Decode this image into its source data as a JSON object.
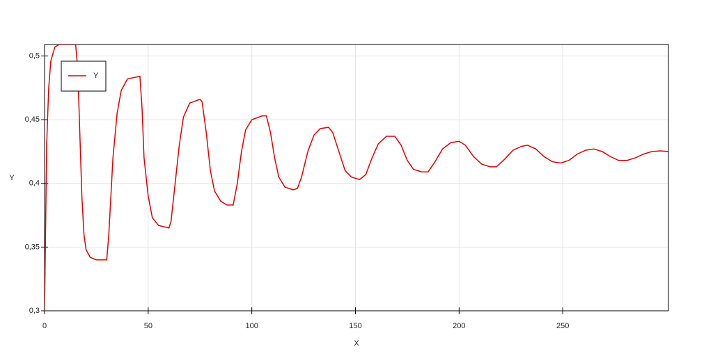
{
  "chart_data": {
    "type": "line",
    "x_label": "X",
    "y_label": "Y",
    "x": [
      0,
      1,
      2,
      3,
      5,
      7,
      15,
      16,
      17,
      18,
      19,
      20,
      22,
      25,
      30,
      31,
      33,
      35,
      37,
      40,
      46,
      47,
      48,
      50,
      52,
      55,
      60,
      61,
      63,
      65,
      67,
      70,
      75,
      76,
      78,
      80,
      82,
      85,
      88,
      91,
      93,
      95,
      97,
      100,
      105,
      107,
      109,
      111,
      113,
      116,
      120,
      122,
      124,
      127,
      130,
      133,
      137,
      139,
      142,
      145,
      148,
      152,
      155,
      158,
      161,
      165,
      169,
      172,
      175,
      178,
      182,
      185,
      188,
      192,
      196,
      200,
      203,
      207,
      211,
      215,
      218,
      222,
      226,
      230,
      233,
      237,
      241,
      245,
      249,
      253,
      257,
      261,
      265,
      269,
      273,
      277,
      281,
      285,
      289,
      293,
      297,
      301
    ],
    "series": [
      {
        "name": "Y",
        "color": "#e00000",
        "values": [
          0.3,
          0.43,
          0.475,
          0.496,
          0.507,
          0.509,
          0.509,
          0.49,
          0.44,
          0.39,
          0.36,
          0.348,
          0.342,
          0.34,
          0.34,
          0.36,
          0.42,
          0.455,
          0.473,
          0.482,
          0.484,
          0.46,
          0.42,
          0.39,
          0.373,
          0.367,
          0.365,
          0.37,
          0.4,
          0.43,
          0.452,
          0.463,
          0.466,
          0.464,
          0.44,
          0.41,
          0.394,
          0.386,
          0.383,
          0.383,
          0.4,
          0.425,
          0.442,
          0.45,
          0.453,
          0.453,
          0.44,
          0.42,
          0.405,
          0.397,
          0.395,
          0.396,
          0.405,
          0.425,
          0.438,
          0.443,
          0.444,
          0.44,
          0.425,
          0.41,
          0.405,
          0.403,
          0.407,
          0.42,
          0.431,
          0.437,
          0.437,
          0.43,
          0.418,
          0.411,
          0.409,
          0.409,
          0.416,
          0.427,
          0.432,
          0.433,
          0.43,
          0.421,
          0.415,
          0.413,
          0.413,
          0.419,
          0.426,
          0.429,
          0.43,
          0.427,
          0.421,
          0.417,
          0.416,
          0.418,
          0.423,
          0.426,
          0.427,
          0.425,
          0.421,
          0.418,
          0.418,
          0.42,
          0.423,
          0.425,
          0.4255,
          0.425
        ]
      }
    ],
    "xlim": [
      0,
      301
    ],
    "ylim": [
      0.3,
      0.509
    ],
    "xticks": [
      0,
      50,
      100,
      150,
      200,
      250
    ],
    "yticks": [
      {
        "value": 0.3,
        "label": "0,3"
      },
      {
        "value": 0.35,
        "label": "0,35"
      },
      {
        "value": 0.4,
        "label": "0,4"
      },
      {
        "value": 0.45,
        "label": "0,45"
      },
      {
        "value": 0.5,
        "label": "0,5"
      }
    ],
    "grid": true,
    "legend": "upper-left"
  }
}
